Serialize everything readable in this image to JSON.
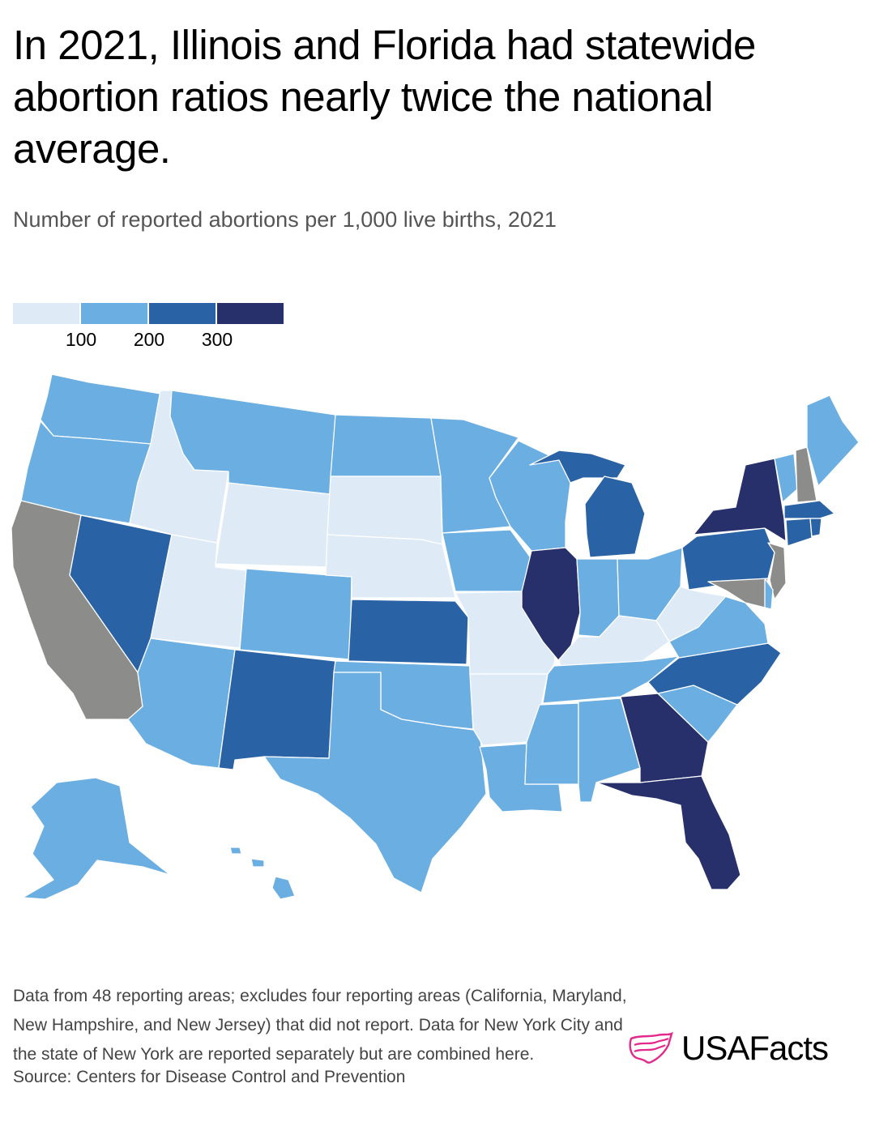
{
  "header": {
    "title": "In 2021, Illinois and Florida had statewide abortion ratios nearly twice the national average.",
    "subtitle": "Number of reported abortions per 1,000 live births, 2021"
  },
  "legend": {
    "colors": [
      "#deebf7",
      "#6aaee2",
      "#2a63a5",
      "#27306b"
    ],
    "ticks": [
      "100",
      "200",
      "300"
    ],
    "no_data_color": "#8c8c8a"
  },
  "chart_data": {
    "type": "choropleth",
    "title": "In 2021, Illinois and Florida had statewide abortion ratios nearly twice the national average.",
    "subtitle": "Number of reported abortions per 1,000 live births, 2021",
    "bins": [
      {
        "label": "<100",
        "color": "#deebf7"
      },
      {
        "label": "100-200",
        "color": "#6aaee2"
      },
      {
        "label": "200-300",
        "color": "#2a63a5"
      },
      {
        "label": ">300",
        "color": "#27306b"
      }
    ],
    "states": {
      "WA": "100-200",
      "OR": "100-200",
      "CA": "no data",
      "NV": "200-300",
      "ID": "<100",
      "MT": "100-200",
      "WY": "<100",
      "UT": "<100",
      "AZ": "100-200",
      "CO": "100-200",
      "NM": "200-300",
      "ND": "100-200",
      "SD": "<100",
      "NE": "<100",
      "KS": "200-300",
      "OK": "100-200",
      "TX": "100-200",
      "MN": "100-200",
      "IA": "100-200",
      "MO": "<100",
      "AR": "<100",
      "LA": "100-200",
      "WI": "100-200",
      "IL": ">300",
      "MI": "200-300",
      "IN": "100-200",
      "OH": "100-200",
      "KY": "<100",
      "TN": "100-200",
      "MS": "100-200",
      "AL": "100-200",
      "GA": ">300",
      "FL": ">300",
      "SC": "100-200",
      "NC": "200-300",
      "VA": "100-200",
      "WV": "<100",
      "PA": "200-300",
      "NY": ">300",
      "VT": "100-200",
      "NH": "no data",
      "ME": "100-200",
      "MA": "200-300",
      "RI": "200-300",
      "CT": "200-300",
      "NJ": "no data",
      "DE": "100-200",
      "MD": "no data",
      "DC": "100-200",
      "AK": "100-200",
      "HI": "100-200"
    }
  },
  "footer": {
    "notes": "Data from 48 reporting areas; excludes four reporting areas (California, Maryland, New Hampshire, and New Jersey) that did not report. Data for New York City and the state of New York are reported separately but are combined here.",
    "source": "Source: Centers for Disease Control and Prevention",
    "logo_text": "USAFacts",
    "logo_color": "#e3298b"
  }
}
